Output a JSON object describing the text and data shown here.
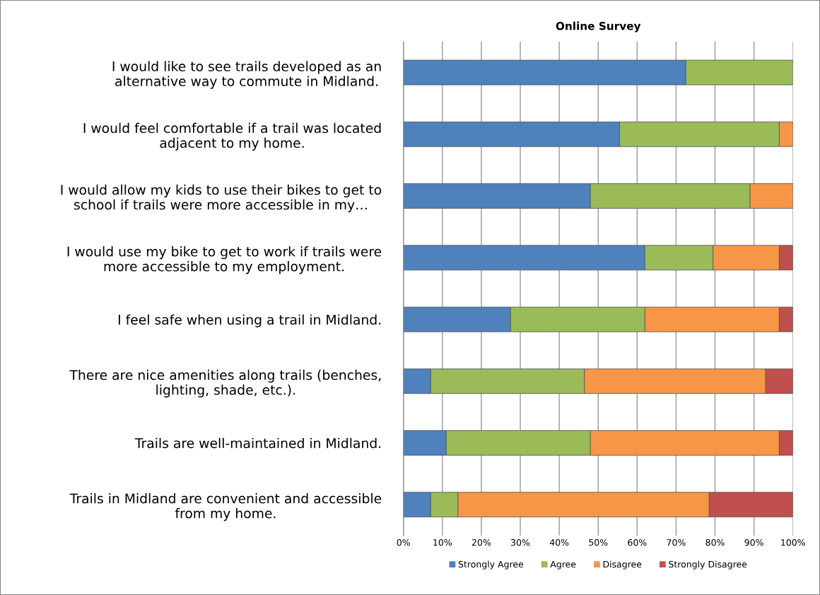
{
  "chart_data": {
    "type": "bar",
    "orientation": "horizontal",
    "stacked": true,
    "title": "Online Survey",
    "categories": [
      "I would like to see trails developed as an\nalternative way to commute in Midland.",
      "I would feel comfortable if a trail was located\nadjacent to my home.",
      "I would allow my kids to use their bikes to get to\nschool if trails were more accessible in my…",
      "I would use my bike to get to work if trails were\nmore accessible to my employment.",
      "I feel safe when using a trail in Midland.",
      "There are nice amenities along trails (benches,\nlighting, shade, etc.).",
      "Trails are well-maintained in Midland.",
      "Trails in Midland are convenient and accessible\nfrom my home."
    ],
    "series": [
      {
        "name": "Strongly Agree",
        "color": "#4f81bd",
        "values": [
          72.5,
          55.5,
          48,
          62,
          27.5,
          7,
          11,
          7
        ]
      },
      {
        "name": "Agree",
        "color": "#9bbb59",
        "values": [
          27.5,
          41,
          41,
          17.5,
          34.5,
          39.5,
          37,
          7
        ]
      },
      {
        "name": "Disagree",
        "color": "#f79646",
        "values": [
          null,
          3.5,
          11,
          17,
          34.5,
          46.5,
          48.5,
          64.5
        ]
      },
      {
        "name": "Strongly Disagree",
        "color": "#c0504d",
        "values": [
          null,
          null,
          null,
          3.5,
          3.5,
          7,
          3.5,
          21.5
        ]
      }
    ],
    "xlim": [
      0,
      100
    ],
    "xticks": [
      {
        "value": 0,
        "label": "0%"
      },
      {
        "value": 10,
        "label": "10%"
      },
      {
        "value": 20,
        "label": "20%"
      },
      {
        "value": 30,
        "label": "30%"
      },
      {
        "value": 40,
        "label": "40%"
      },
      {
        "value": 50,
        "label": "50%"
      },
      {
        "value": 60,
        "label": "60%"
      },
      {
        "value": 70,
        "label": "70%"
      },
      {
        "value": 80,
        "label": "80%"
      },
      {
        "value": 90,
        "label": "90%"
      },
      {
        "value": 100,
        "label": "100%"
      }
    ],
    "grid": "x",
    "legend": "bottom"
  }
}
